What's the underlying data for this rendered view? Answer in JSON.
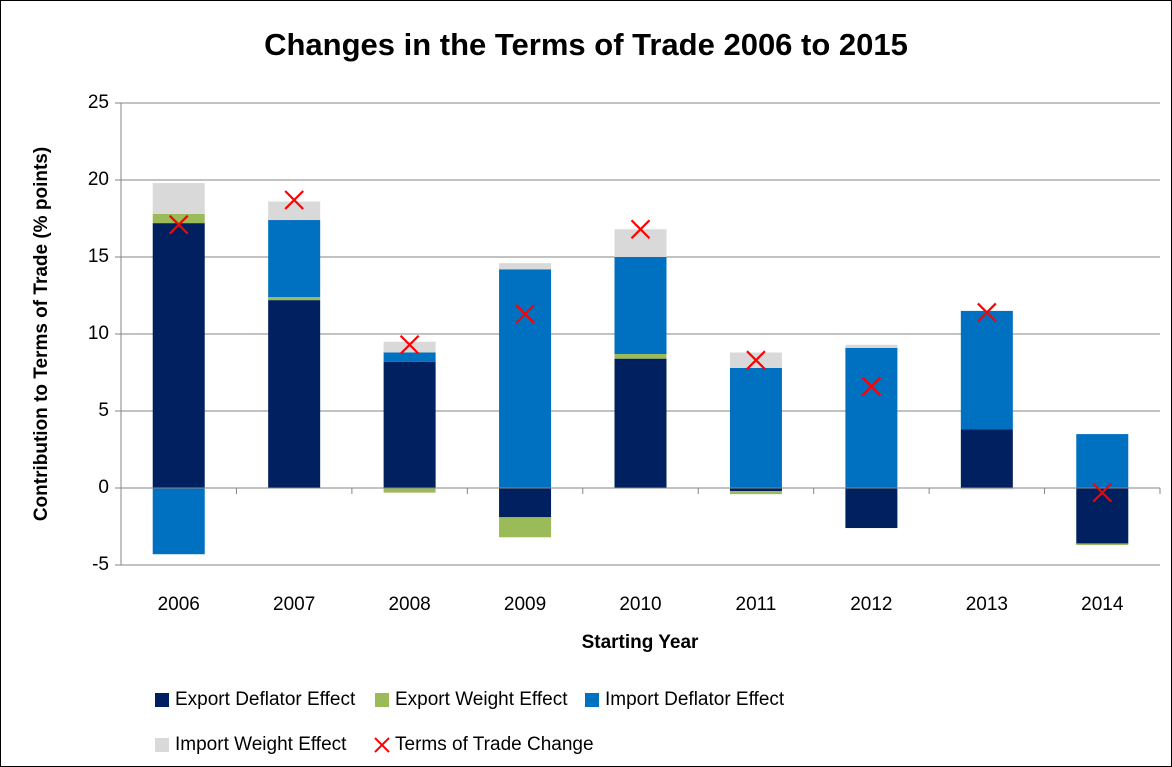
{
  "chart_data": {
    "type": "bar",
    "stacked": true,
    "title": "Changes in the Terms of Trade 2006 to 2015",
    "x_label": "Starting Year",
    "y_label": "Contribution to Terms of Trade (% points)",
    "categories": [
      "2006",
      "2007",
      "2008",
      "2009",
      "2010",
      "2011",
      "2012",
      "2013",
      "2014"
    ],
    "series": [
      {
        "name": "Export Deflator Effect",
        "color": "#002060",
        "values": [
          17.2,
          12.2,
          8.2,
          -1.9,
          8.4,
          -0.2,
          -2.6,
          3.8,
          -3.6
        ]
      },
      {
        "name": "Export Weight Effect",
        "color": "#9bbb59",
        "values": [
          0.6,
          0.2,
          -0.3,
          -1.3,
          0.3,
          -0.2,
          0,
          0,
          -0.1
        ]
      },
      {
        "name": "Import Deflator Effect",
        "color": "#0070c0",
        "values": [
          -4.3,
          5.0,
          0.6,
          14.2,
          6.3,
          7.8,
          9.1,
          7.7,
          3.5
        ]
      },
      {
        "name": "Import Weight Effect",
        "color": "#d9d9d9",
        "values": [
          2.0,
          1.2,
          0.7,
          0.4,
          1.8,
          1.0,
          0.2,
          -0.1,
          0
        ]
      },
      {
        "name": "Terms of Trade Change",
        "color": "#ff0000",
        "type": "scatter",
        "values": [
          17.1,
          18.7,
          9.3,
          11.3,
          16.8,
          8.3,
          6.6,
          11.4,
          -0.3
        ]
      }
    ],
    "ylim": [
      -5,
      25
    ],
    "yticks": [
      -5,
      0,
      5,
      10,
      15,
      20,
      25
    ],
    "grid": true,
    "legend": "bottom"
  }
}
